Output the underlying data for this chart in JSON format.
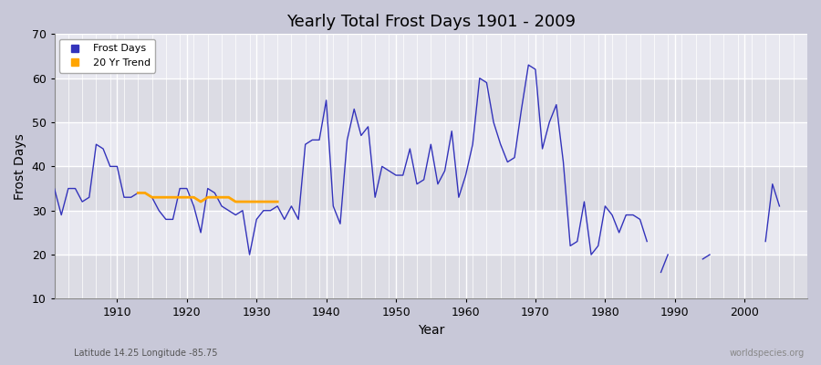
{
  "title": "Yearly Total Frost Days 1901 - 2009",
  "xlabel": "Year",
  "ylabel": "Frost Days",
  "subtitle_left": "Latitude 14.25 Longitude -85.75",
  "subtitle_right": "worldspecies.org",
  "ylim": [
    10,
    70
  ],
  "xlim": [
    1901,
    2009
  ],
  "line_color": "#3333bb",
  "trend_color": "#FFA500",
  "bg_color": "#e8e8ee",
  "band_color_dark": "#dcdce6",
  "band_color_light": "#e8e8ee",
  "grid_major_color": "#ffffff",
  "grid_minor_color": "#ddddee",
  "legend_frost": "Frost Days",
  "legend_trend": "20 Yr Trend",
  "frost_data": [
    [
      1901,
      35
    ],
    [
      1902,
      29
    ],
    [
      1903,
      35
    ],
    [
      1904,
      35
    ],
    [
      1905,
      32
    ],
    [
      1906,
      33
    ],
    [
      1907,
      45
    ],
    [
      1908,
      44
    ],
    [
      1909,
      40
    ],
    [
      1910,
      40
    ],
    [
      1911,
      33
    ],
    [
      1912,
      33
    ],
    [
      1913,
      34
    ],
    [
      1914,
      34
    ],
    [
      1915,
      33
    ],
    [
      1916,
      30
    ],
    [
      1917,
      28
    ],
    [
      1918,
      28
    ],
    [
      1919,
      35
    ],
    [
      1920,
      35
    ],
    [
      1921,
      31
    ],
    [
      1922,
      25
    ],
    [
      1923,
      35
    ],
    [
      1924,
      34
    ],
    [
      1925,
      31
    ],
    [
      1926,
      30
    ],
    [
      1927,
      29
    ],
    [
      1928,
      30
    ],
    [
      1929,
      20
    ],
    [
      1930,
      28
    ],
    [
      1931,
      30
    ],
    [
      1932,
      30
    ],
    [
      1933,
      31
    ],
    [
      1934,
      28
    ],
    [
      1935,
      31
    ],
    [
      1936,
      28
    ],
    [
      1937,
      45
    ],
    [
      1938,
      46
    ],
    [
      1939,
      46
    ],
    [
      1940,
      55
    ],
    [
      1941,
      31
    ],
    [
      1942,
      27
    ],
    [
      1943,
      46
    ],
    [
      1944,
      53
    ],
    [
      1945,
      47
    ],
    [
      1946,
      49
    ],
    [
      1947,
      33
    ],
    [
      1948,
      40
    ],
    [
      1949,
      39
    ],
    [
      1950,
      38
    ],
    [
      1951,
      38
    ],
    [
      1952,
      44
    ],
    [
      1953,
      36
    ],
    [
      1954,
      37
    ],
    [
      1955,
      45
    ],
    [
      1956,
      36
    ],
    [
      1957,
      39
    ],
    [
      1958,
      48
    ],
    [
      1959,
      33
    ],
    [
      1960,
      38
    ],
    [
      1961,
      45
    ],
    [
      1962,
      60
    ],
    [
      1963,
      59
    ],
    [
      1964,
      50
    ],
    [
      1965,
      45
    ],
    [
      1966,
      41
    ],
    [
      1967,
      42
    ],
    [
      1968,
      53
    ],
    [
      1969,
      63
    ],
    [
      1970,
      62
    ],
    [
      1971,
      44
    ],
    [
      1972,
      50
    ],
    [
      1973,
      54
    ],
    [
      1974,
      41
    ],
    [
      1975,
      22
    ],
    [
      1976,
      23
    ],
    [
      1977,
      32
    ],
    [
      1978,
      20
    ],
    [
      1979,
      22
    ],
    [
      1980,
      31
    ],
    [
      1981,
      29
    ],
    [
      1982,
      25
    ],
    [
      1983,
      29
    ],
    [
      1984,
      29
    ],
    [
      1985,
      28
    ],
    [
      1986,
      23
    ],
    [
      1988,
      16
    ],
    [
      1989,
      20
    ],
    [
      1994,
      19
    ],
    [
      1995,
      20
    ],
    [
      2003,
      23
    ],
    [
      2004,
      36
    ],
    [
      2005,
      31
    ]
  ],
  "trend_data": [
    [
      1913,
      34
    ],
    [
      1914,
      34
    ],
    [
      1915,
      33
    ],
    [
      1916,
      33
    ],
    [
      1917,
      33
    ],
    [
      1918,
      33
    ],
    [
      1919,
      33
    ],
    [
      1920,
      33
    ],
    [
      1921,
      33
    ],
    [
      1922,
      32
    ],
    [
      1923,
      33
    ],
    [
      1924,
      33
    ],
    [
      1925,
      33
    ],
    [
      1926,
      33
    ],
    [
      1927,
      32
    ],
    [
      1928,
      32
    ],
    [
      1929,
      32
    ],
    [
      1930,
      32
    ],
    [
      1931,
      32
    ],
    [
      1932,
      32
    ],
    [
      1933,
      32
    ]
  ],
  "xtick_major": [
    1910,
    1920,
    1930,
    1940,
    1950,
    1960,
    1970,
    1980,
    1990,
    2000
  ],
  "ytick_major": [
    10,
    20,
    30,
    40,
    50,
    60,
    70
  ],
  "band_ranges": [
    [
      10,
      20
    ],
    [
      20,
      30
    ],
    [
      30,
      40
    ],
    [
      40,
      50
    ],
    [
      50,
      60
    ],
    [
      60,
      70
    ]
  ]
}
